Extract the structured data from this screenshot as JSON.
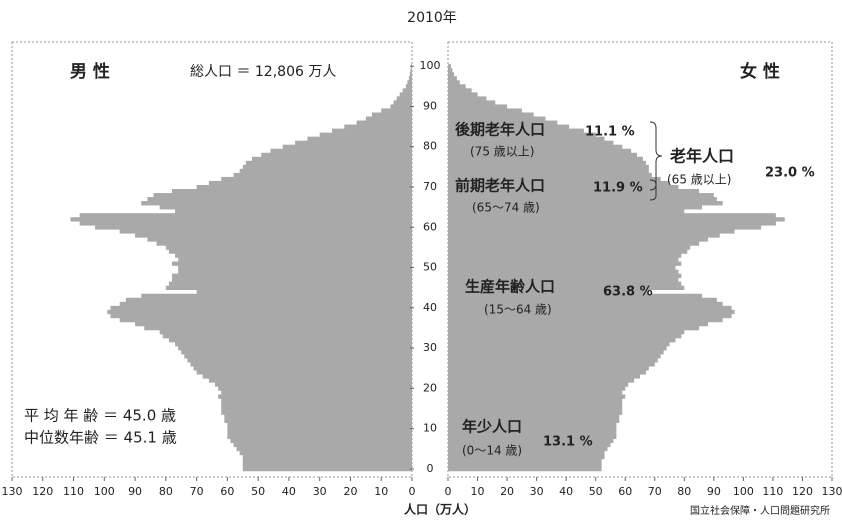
{
  "chart_data": {
    "type": "pyramid",
    "title": "2010年",
    "xlabel": "人口（万人）",
    "credit": "国立社会保障・人口問題研究所",
    "y": [
      0,
      1,
      2,
      3,
      4,
      5,
      6,
      7,
      8,
      9,
      10,
      11,
      12,
      13,
      14,
      15,
      16,
      17,
      18,
      19,
      20,
      21,
      22,
      23,
      24,
      25,
      26,
      27,
      28,
      29,
      30,
      31,
      32,
      33,
      34,
      35,
      36,
      37,
      38,
      39,
      40,
      41,
      42,
      43,
      44,
      45,
      46,
      47,
      48,
      49,
      50,
      51,
      52,
      53,
      54,
      55,
      56,
      57,
      58,
      59,
      60,
      61,
      62,
      63,
      64,
      65,
      66,
      67,
      68,
      69,
      70,
      71,
      72,
      73,
      74,
      75,
      76,
      77,
      78,
      79,
      80,
      81,
      82,
      83,
      84,
      85,
      86,
      87,
      88,
      89,
      90,
      91,
      92,
      93,
      94,
      95,
      96,
      97,
      98,
      99,
      100
    ],
    "ylim": [
      -2,
      106
    ],
    "yticks": [
      0,
      10,
      20,
      30,
      40,
      50,
      60,
      70,
      80,
      90,
      100
    ],
    "xlim": [
      0,
      130
    ],
    "xticks": [
      0,
      10,
      20,
      30,
      40,
      50,
      60,
      70,
      80,
      90,
      100,
      110,
      120,
      130
    ],
    "series": [
      {
        "name": "男 性",
        "color": "#a9a9a9",
        "side": "left",
        "values": [
          55,
          55,
          55,
          55,
          56,
          57,
          58,
          59,
          60,
          60,
          60,
          60,
          61,
          61,
          62,
          62,
          62,
          62,
          63,
          62,
          63,
          64,
          66,
          68,
          70,
          71,
          72,
          73,
          74,
          75,
          76,
          77,
          79,
          81,
          82,
          87,
          90,
          95,
          98,
          99,
          98,
          95,
          93,
          88,
          70,
          80,
          79,
          78,
          78,
          76,
          76,
          78,
          76,
          77,
          79,
          80,
          83,
          86,
          90,
          95,
          103,
          108,
          111,
          108,
          77,
          82,
          88,
          86,
          84,
          78,
          70,
          66,
          62,
          58,
          56,
          55,
          54,
          52,
          49,
          46,
          42,
          38,
          34,
          30,
          26,
          22,
          18,
          15,
          13,
          10,
          7,
          6,
          5,
          4,
          3,
          2,
          1.5,
          1,
          0.7,
          0.5,
          0.3
        ]
      },
      {
        "name": "女 性",
        "color": "#a9a9a9",
        "side": "right",
        "values": [
          52,
          52,
          52,
          53,
          53,
          54,
          55,
          56,
          57,
          57,
          57,
          57,
          58,
          58,
          59,
          59,
          59,
          59,
          60,
          59,
          60,
          61,
          63,
          65,
          67,
          68,
          70,
          71,
          72,
          73,
          74,
          75,
          77,
          79,
          80,
          85,
          88,
          93,
          96,
          97,
          96,
          93,
          91,
          86,
          68,
          80,
          79,
          78,
          79,
          78,
          77,
          79,
          78,
          79,
          81,
          82,
          85,
          88,
          92,
          97,
          106,
          111,
          114,
          111,
          80,
          86,
          93,
          91,
          90,
          85,
          78,
          75,
          72,
          69,
          68,
          68,
          67,
          66,
          64,
          62,
          59,
          56,
          53,
          50,
          46,
          41,
          37,
          33,
          29,
          25,
          20,
          16,
          13,
          10,
          8,
          6,
          4,
          3,
          2,
          1.5,
          1
        ]
      }
    ],
    "annotations": [
      "総人口 ＝ 12,806 万人",
      "後期老年人口",
      "11.1 %",
      "(75 歳以上)",
      "前期老年人口",
      "11.9 %",
      "(65～74 歳)",
      "老年人口",
      "(65 歳以上)",
      "23.0 %",
      "生産年齢人口",
      "63.8 %",
      "(15～64 歳)",
      "年少人口",
      "13.1 %",
      "(0～14 歳)",
      "平 均 年 齢 ＝ 45.0 歳",
      "中位数年齢 ＝ 45.1 歳"
    ]
  }
}
